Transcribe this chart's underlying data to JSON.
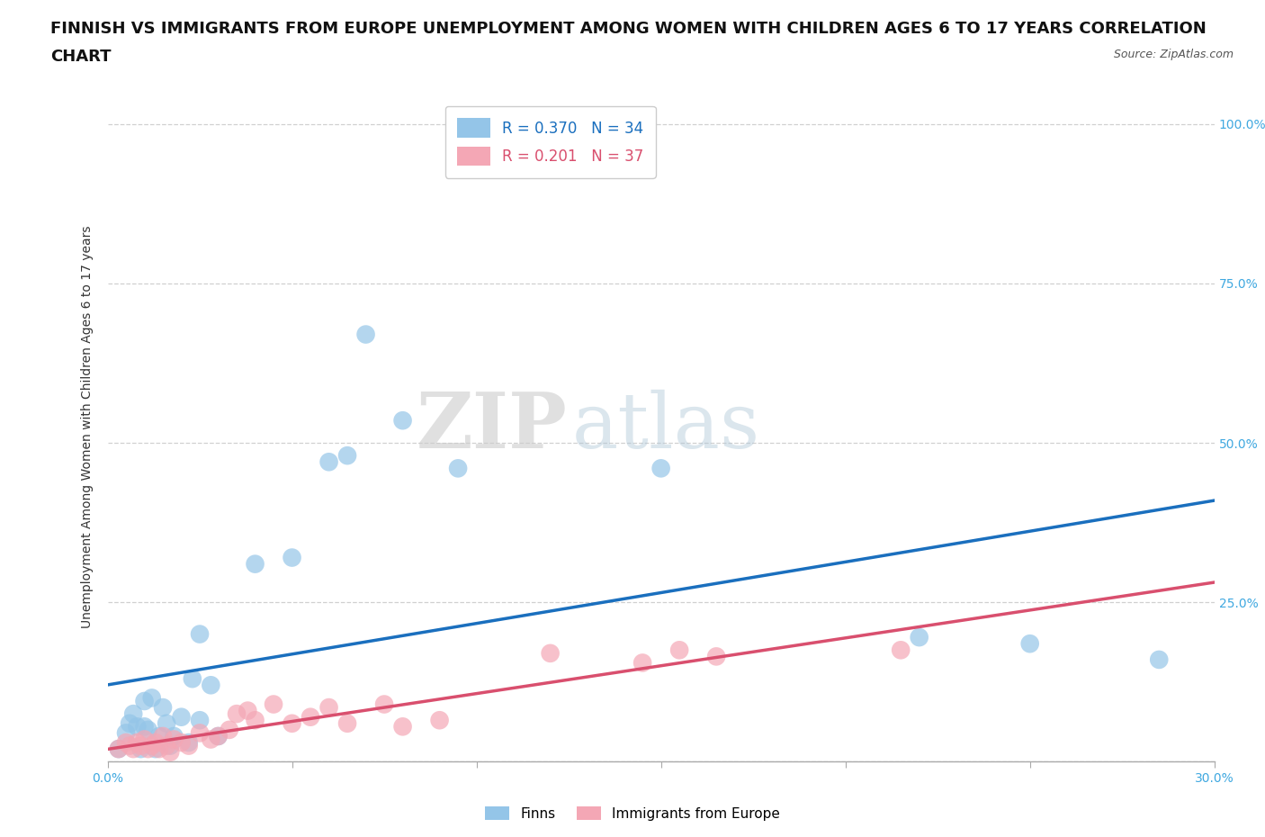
{
  "title_line1": "FINNISH VS IMMIGRANTS FROM EUROPE UNEMPLOYMENT AMONG WOMEN WITH CHILDREN AGES 6 TO 17 YEARS CORRELATION",
  "title_line2": "CHART",
  "source": "Source: ZipAtlas.com",
  "ylabel_label": "Unemployment Among Women with Children Ages 6 to 17 years",
  "xmin": 0.0,
  "xmax": 0.3,
  "ymin": 0.0,
  "ymax": 1.05,
  "yticks": [
    0.0,
    0.25,
    0.5,
    0.75,
    1.0
  ],
  "ytick_labels": [
    "",
    "25.0%",
    "50.0%",
    "75.0%",
    "100.0%"
  ],
  "xticks": [
    0.0,
    0.05,
    0.1,
    0.15,
    0.2,
    0.25,
    0.3
  ],
  "xtick_labels": [
    "0.0%",
    "",
    "",
    "",
    "",
    "",
    "30.0%"
  ],
  "finns_R": 0.37,
  "finns_N": 34,
  "immigrants_R": 0.201,
  "immigrants_N": 37,
  "finns_color": "#94c5e8",
  "immigrants_color": "#f4a7b5",
  "finns_line_color": "#1a6fbe",
  "immigrants_line_color": "#d94f6e",
  "watermark_zip": "ZIP",
  "watermark_atlas": "atlas",
  "finns_x": [
    0.003,
    0.005,
    0.006,
    0.007,
    0.008,
    0.009,
    0.01,
    0.01,
    0.011,
    0.012,
    0.013,
    0.014,
    0.015,
    0.016,
    0.017,
    0.018,
    0.02,
    0.022,
    0.023,
    0.025,
    0.025,
    0.028,
    0.03,
    0.04,
    0.05,
    0.06,
    0.065,
    0.07,
    0.08,
    0.095,
    0.15,
    0.22,
    0.25,
    0.285
  ],
  "finns_y": [
    0.02,
    0.045,
    0.06,
    0.075,
    0.055,
    0.02,
    0.055,
    0.095,
    0.05,
    0.1,
    0.02,
    0.04,
    0.085,
    0.06,
    0.025,
    0.04,
    0.07,
    0.03,
    0.13,
    0.2,
    0.065,
    0.12,
    0.04,
    0.31,
    0.32,
    0.47,
    0.48,
    0.67,
    0.535,
    0.46,
    0.46,
    0.195,
    0.185,
    0.16
  ],
  "immigrants_x": [
    0.003,
    0.005,
    0.006,
    0.007,
    0.008,
    0.009,
    0.01,
    0.011,
    0.012,
    0.013,
    0.014,
    0.015,
    0.016,
    0.017,
    0.018,
    0.02,
    0.022,
    0.025,
    0.028,
    0.03,
    0.033,
    0.035,
    0.038,
    0.04,
    0.045,
    0.05,
    0.055,
    0.06,
    0.065,
    0.075,
    0.08,
    0.09,
    0.12,
    0.145,
    0.155,
    0.165,
    0.215
  ],
  "immigrants_y": [
    0.02,
    0.03,
    0.025,
    0.02,
    0.03,
    0.025,
    0.035,
    0.02,
    0.025,
    0.03,
    0.02,
    0.04,
    0.025,
    0.015,
    0.035,
    0.03,
    0.025,
    0.045,
    0.035,
    0.04,
    0.05,
    0.075,
    0.08,
    0.065,
    0.09,
    0.06,
    0.07,
    0.085,
    0.06,
    0.09,
    0.055,
    0.065,
    0.17,
    0.155,
    0.175,
    0.165,
    0.175
  ],
  "title_fontsize": 13,
  "axis_label_fontsize": 10,
  "tick_fontsize": 10,
  "source_fontsize": 9
}
